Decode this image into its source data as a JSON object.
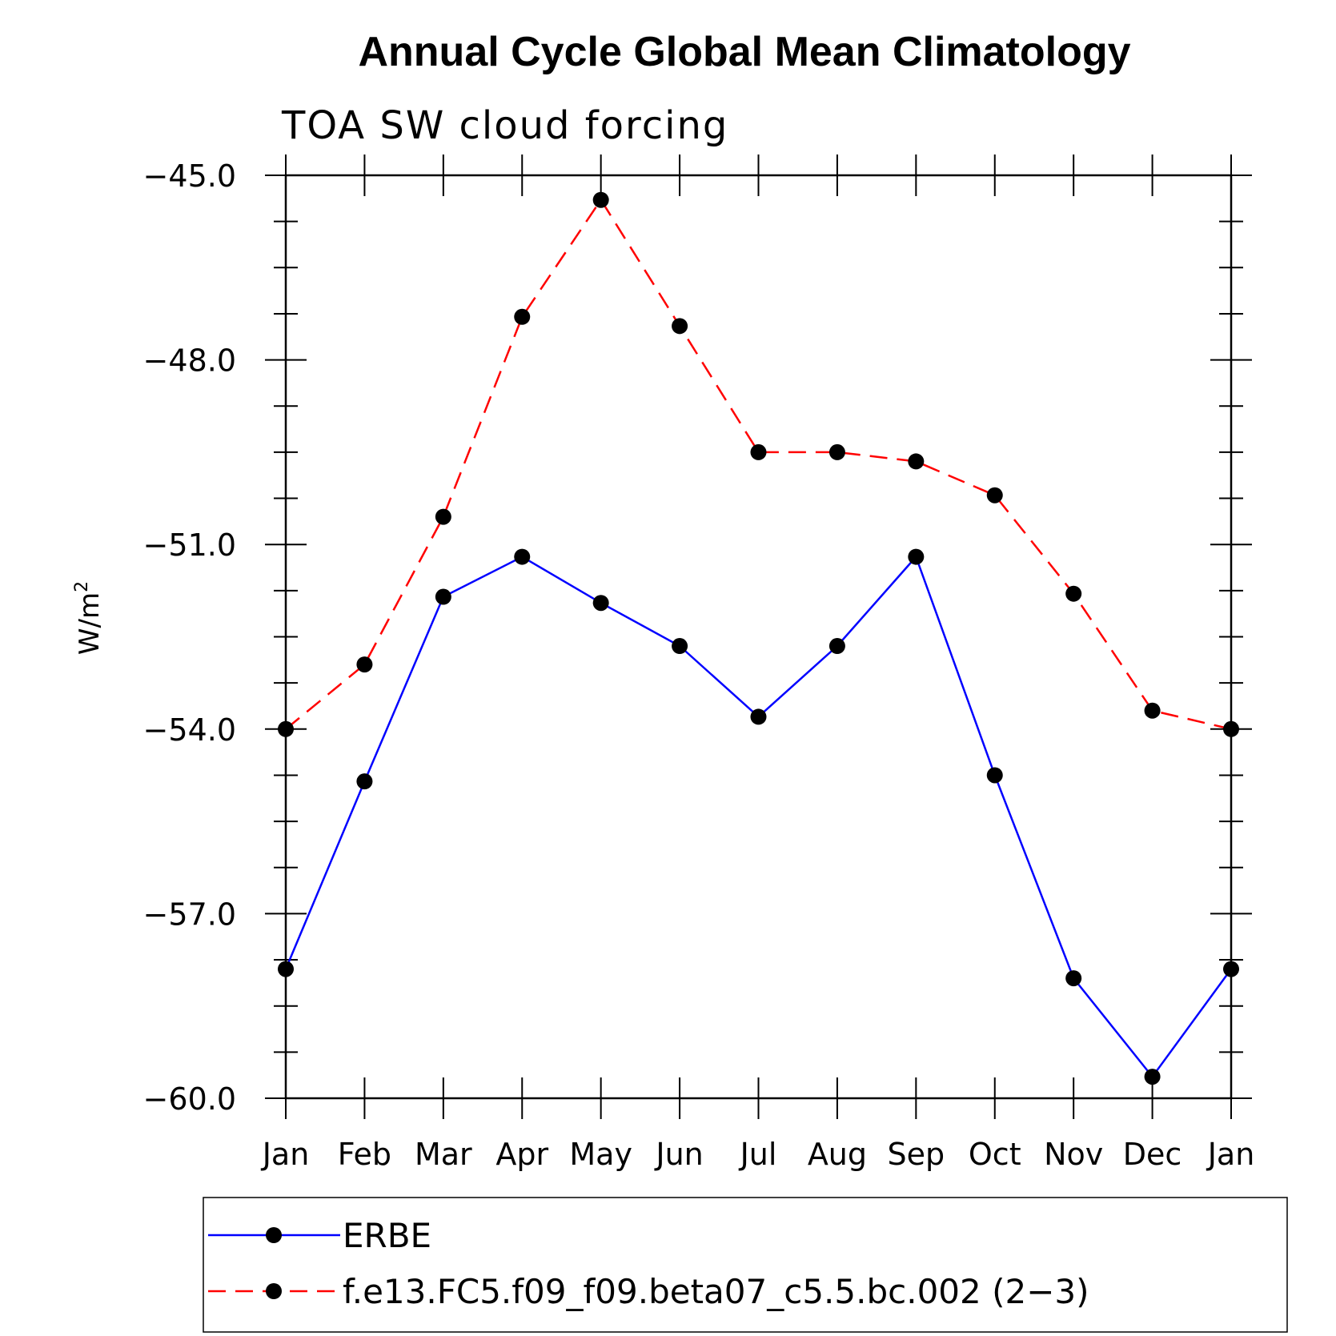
{
  "chart_data": {
    "type": "line",
    "title": "Annual Cycle Global Mean Climatology",
    "subtitle": "TOA SW cloud forcing",
    "ylabel": "W/m",
    "ylabel_sup": "2",
    "xlabel": "",
    "categories": [
      "Jan",
      "Feb",
      "Mar",
      "Apr",
      "May",
      "Jun",
      "Jul",
      "Aug",
      "Sep",
      "Oct",
      "Nov",
      "Dec",
      "Jan"
    ],
    "ylim": [
      -60.0,
      -45.0
    ],
    "yticks": [
      -45.0,
      -48.0,
      -51.0,
      -54.0,
      -57.0,
      -60.0
    ],
    "ytick_labels": [
      "−45.0",
      "−48.0",
      "−51.0",
      "−54.0",
      "−57.0",
      "−60.0"
    ],
    "grid": false,
    "legend_position": "bottom",
    "series": [
      {
        "name": "ERBE",
        "color": "#0000ff",
        "dash": "solid",
        "marker": "filled-circle",
        "values": [
          -57.9,
          -54.85,
          -51.85,
          -51.2,
          -51.95,
          -52.65,
          -53.8,
          -52.65,
          -51.2,
          -54.75,
          -58.05,
          -59.65,
          -57.9
        ]
      },
      {
        "name": "f.e13.FC5.f09_f09.beta07_c5.5.bc.002 (2−3)",
        "color": "#ff0000",
        "dash": "dashed",
        "marker": "filled-circle",
        "values": [
          -54.0,
          -52.95,
          -50.55,
          -47.3,
          -45.4,
          -47.45,
          -49.5,
          -49.5,
          -49.65,
          -50.2,
          -51.8,
          -53.7,
          -54.0
        ]
      }
    ]
  }
}
